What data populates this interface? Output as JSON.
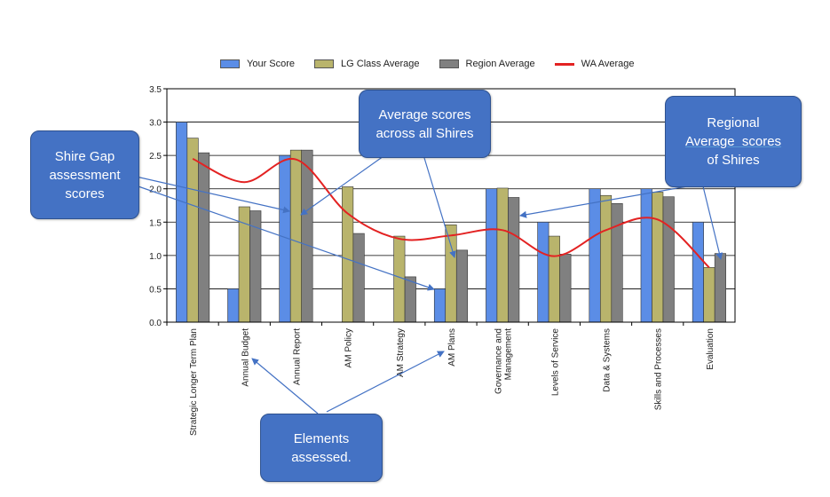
{
  "chart_data": {
    "type": "bar",
    "categories": [
      "Strategic Longer Term Plan",
      "Annual Budget",
      "Annual Report",
      "AM Policy",
      "AM Strategy",
      "AM Plans",
      "Governance and Management",
      "Levels of Service",
      "Data & Systems",
      "Skills and Processes",
      "Evaluation"
    ],
    "series": [
      {
        "name": "Your Score",
        "kind": "bar",
        "color": "#5b8de6",
        "values": [
          3.0,
          0.5,
          2.5,
          0.0,
          0.0,
          0.5,
          2.0,
          1.5,
          2.0,
          2.0,
          1.5
        ]
      },
      {
        "name": "LG Class Average",
        "kind": "bar",
        "color": "#b9b46c",
        "values": [
          2.76,
          1.73,
          2.58,
          2.03,
          1.29,
          1.46,
          2.01,
          1.29,
          1.9,
          1.95,
          0.82
        ]
      },
      {
        "name": "Region Average",
        "kind": "bar",
        "color": "#808080",
        "values": [
          2.54,
          1.67,
          2.58,
          1.33,
          0.68,
          1.08,
          1.87,
          1.02,
          1.78,
          1.88,
          1.03
        ]
      },
      {
        "name": "WA Average",
        "kind": "line",
        "color": "#e32222",
        "values": [
          2.45,
          2.1,
          2.44,
          1.63,
          1.25,
          1.3,
          1.38,
          0.99,
          1.38,
          1.54,
          0.82
        ]
      }
    ],
    "ylim": [
      0,
      3.5
    ],
    "yticks": [
      "0.0",
      "0.5",
      "1.0",
      "1.5",
      "2.0",
      "2.5",
      "3.0",
      "3.5"
    ],
    "grid": true,
    "legend_position": "top",
    "title": "",
    "xlabel": "",
    "ylabel": ""
  },
  "callouts": {
    "shire_gap": [
      "Shire Gap",
      "assessment",
      "scores"
    ],
    "average_scores": [
      "Average scores",
      "across all Shires"
    ],
    "regional": [
      "Regional",
      "Average  scores",
      "of Shires"
    ],
    "elements": [
      "Elements",
      "assessed."
    ]
  },
  "colors": {
    "callout_fill": "#4472c4",
    "arrow": "#4472c4"
  }
}
